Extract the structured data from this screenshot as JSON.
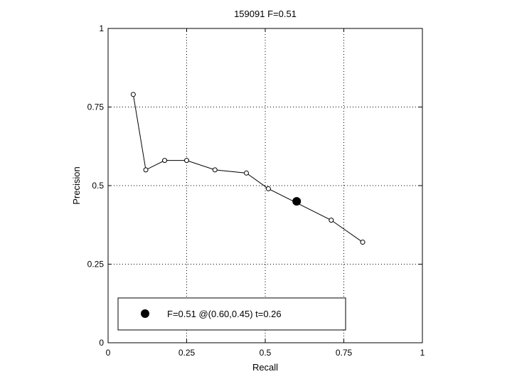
{
  "chart_data": {
    "type": "line",
    "title": "159091 F=0.51",
    "xlabel": "Recall",
    "ylabel": "Precision",
    "xlim": [
      0,
      1
    ],
    "ylim": [
      0,
      1
    ],
    "xticks": [
      "0",
      "0.25",
      "0.5",
      "0.75",
      "1"
    ],
    "yticks": [
      "0",
      "0.25",
      "0.5",
      "0.75",
      "1"
    ],
    "grid": true,
    "series": [
      {
        "x": [
          0.08,
          0.12,
          0.18,
          0.25,
          0.34,
          0.44,
          0.51,
          0.71,
          0.81
        ],
        "y": [
          0.79,
          0.55,
          0.58,
          0.58,
          0.55,
          0.54,
          0.49,
          0.39,
          0.32
        ]
      }
    ],
    "highlight": {
      "x": 0.6,
      "y": 0.45
    },
    "legend": {
      "text": "F=0.51 @(0.60,0.45) t=0.26",
      "position": "bottom-left"
    }
  }
}
